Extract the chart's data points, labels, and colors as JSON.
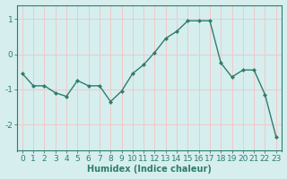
{
  "x": [
    0,
    1,
    2,
    3,
    4,
    5,
    6,
    7,
    8,
    9,
    10,
    11,
    12,
    13,
    14,
    15,
    16,
    17,
    18,
    19,
    20,
    21,
    22,
    23
  ],
  "y": [
    -0.55,
    -0.9,
    -0.9,
    -1.1,
    -1.2,
    -0.75,
    -0.9,
    -0.9,
    -1.35,
    -1.05,
    -0.55,
    -0.3,
    0.05,
    0.45,
    0.65,
    0.95,
    0.95,
    0.95,
    -0.25,
    -0.65,
    -0.45,
    -0.45,
    -1.15,
    -2.35
  ],
  "line_color": "#2e7d6e",
  "marker": "D",
  "marker_size": 2.0,
  "bg_color": "#d6eeee",
  "grid_color": "#f0c8c8",
  "xlabel": "Humidex (Indice chaleur)",
  "xlim": [
    -0.5,
    23.5
  ],
  "ylim": [
    -2.75,
    1.4
  ],
  "yticks": [
    -2,
    -1,
    0,
    1
  ],
  "xticks": [
    0,
    1,
    2,
    3,
    4,
    5,
    6,
    7,
    8,
    9,
    10,
    11,
    12,
    13,
    14,
    15,
    16,
    17,
    18,
    19,
    20,
    21,
    22,
    23
  ],
  "label_fontsize": 7,
  "tick_fontsize": 6.5,
  "line_width": 1.0
}
